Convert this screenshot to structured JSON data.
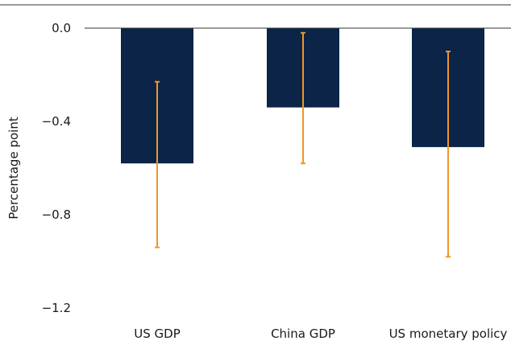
{
  "chart_data": {
    "type": "bar",
    "title": "",
    "xlabel": "",
    "ylabel": "Percentage point",
    "ylim": [
      -1.2,
      0.0
    ],
    "yticks": [
      0.0,
      -0.4,
      -0.8,
      -1.2
    ],
    "ytick_labels": [
      "0.0",
      "−0.4",
      "−0.8",
      "−1.2"
    ],
    "categories": [
      "US GDP",
      "China GDP",
      "US monetary policy"
    ],
    "values": [
      -0.58,
      -0.34,
      -0.51
    ],
    "error_low": [
      -0.94,
      -0.58,
      -0.98
    ],
    "error_high": [
      -0.23,
      -0.02,
      -0.1
    ],
    "grid": false,
    "legend": "none",
    "bar_color": "#0b2447",
    "error_color": "#f0962a"
  }
}
